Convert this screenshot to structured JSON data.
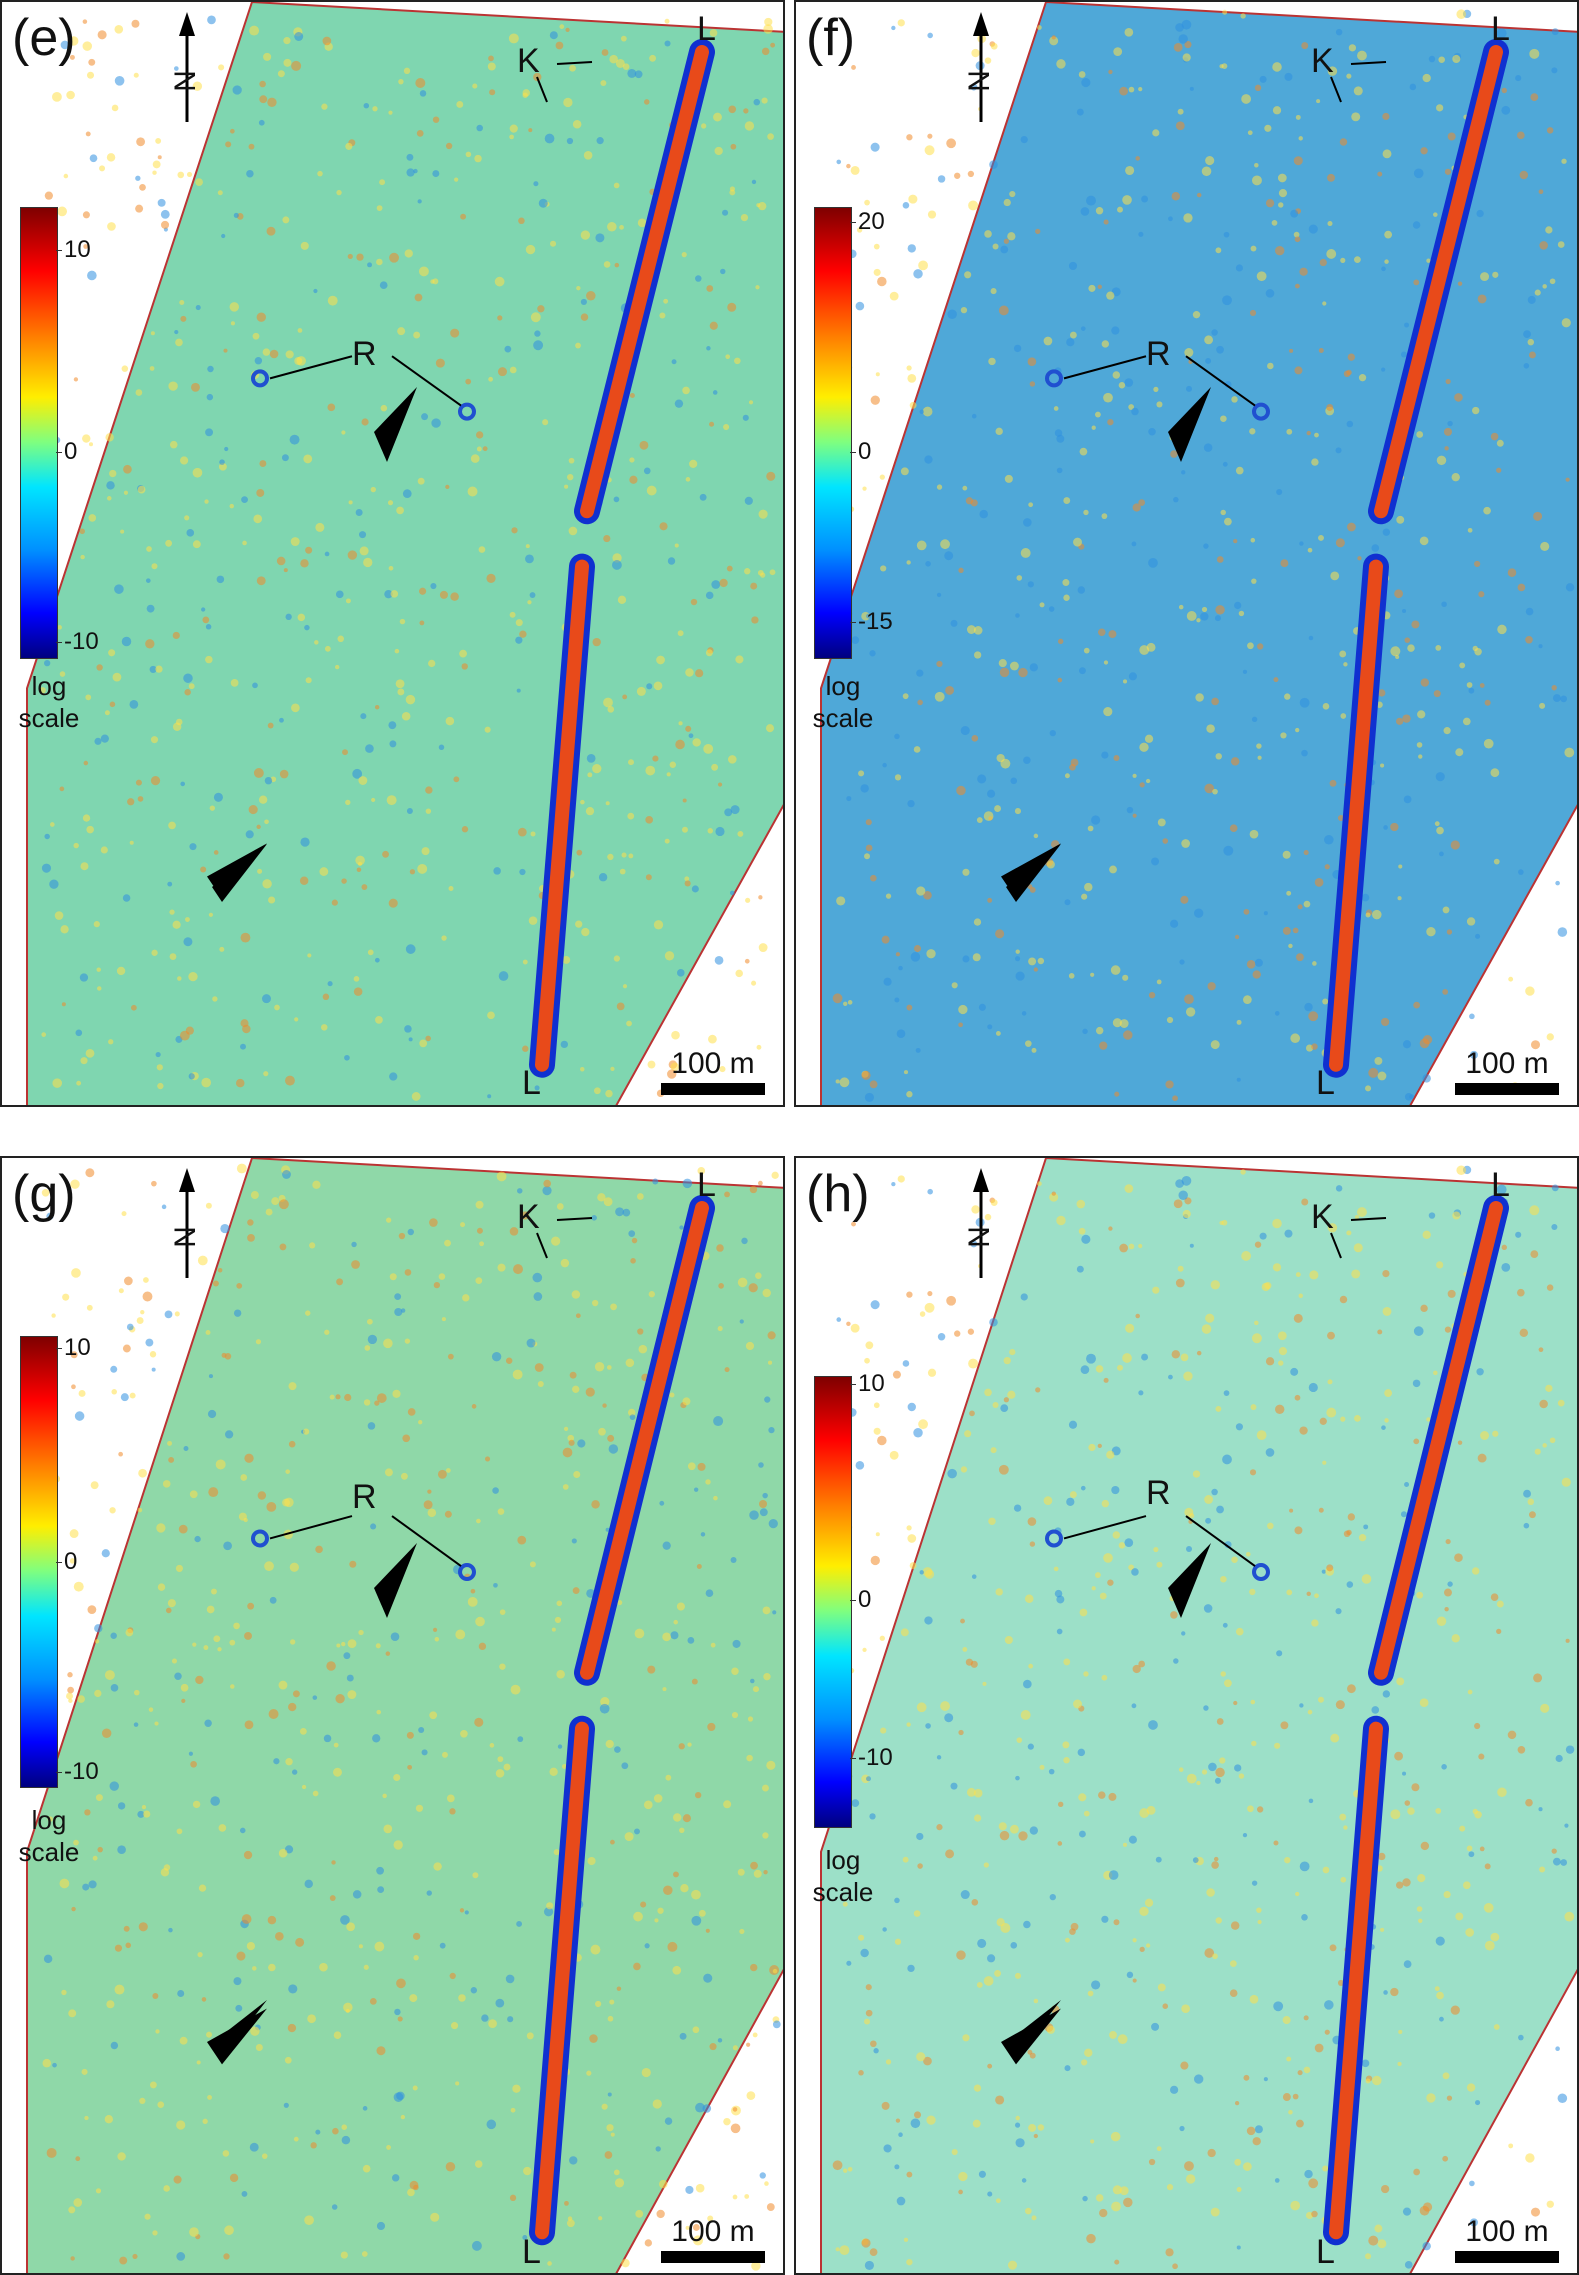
{
  "panels": [
    {
      "id": "e",
      "label": "(e)",
      "colorbar": {
        "ticks": [
          "10",
          "0",
          "-10"
        ]
      },
      "unit": [
        "log",
        "scale"
      ],
      "scale_bar": "100 m",
      "north": "N",
      "markers": {
        "R": "R",
        "K": "K",
        "L_top": "L",
        "L_bottom": "L"
      }
    },
    {
      "id": "f",
      "label": "(f)",
      "colorbar": {
        "ticks": [
          "20",
          "0",
          "-15"
        ]
      },
      "unit": [
        "log",
        "scale"
      ],
      "scale_bar": "100 m",
      "north": "N",
      "markers": {
        "R": "R",
        "K": "K",
        "L_top": "L",
        "L_bottom": "L"
      }
    },
    {
      "id": "g",
      "label": "(g)",
      "colorbar": {
        "ticks": [
          "10",
          "0",
          "-10"
        ]
      },
      "unit": [
        "log",
        "scale"
      ],
      "scale_bar": "100 m",
      "north": "N",
      "markers": {
        "R": "R",
        "K": "K",
        "L_top": "L",
        "L_bottom": "L"
      }
    },
    {
      "id": "h",
      "label": "(h)",
      "colorbar": {
        "ticks": [
          "10",
          "0",
          "-10"
        ]
      },
      "unit": [
        "log",
        "scale"
      ],
      "scale_bar": "100 m",
      "north": "N",
      "markers": {
        "R": "R",
        "K": "K",
        "L_top": "L",
        "L_bottom": "L"
      }
    }
  ],
  "colors": {
    "field_e": "#7fd6b0",
    "field_f": "#4fa8d8",
    "field_g": "#8fd8a8",
    "field_h": "#9ce0c8",
    "linear_feature": "#e84a1a",
    "linear_edge": "#1030d0"
  }
}
